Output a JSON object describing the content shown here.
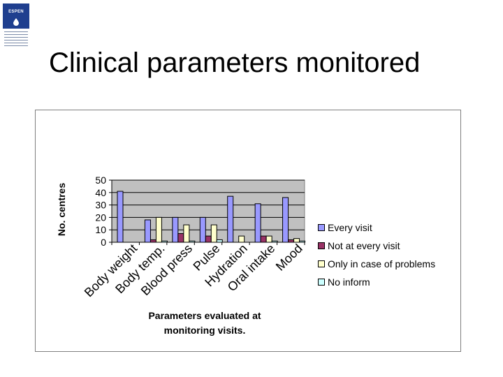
{
  "logo": {
    "text": "ESPEN"
  },
  "slide": {
    "title": "Clinical parameters monitored"
  },
  "colors": {
    "plot_background": "#c0c0c0",
    "every_visit": "#9999ff",
    "not_at_every_visit": "#993366",
    "only_in_case": "#ffffcc",
    "no_inform": "#ccffff"
  },
  "chart_data": {
    "type": "bar",
    "title": "",
    "xlabel": "Parameters evaluated at monitoring visits.",
    "ylabel": "No. centres",
    "ylim": [
      0,
      50
    ],
    "yticks": [
      0,
      10,
      20,
      30,
      40,
      50
    ],
    "grid": true,
    "legend_position": "right",
    "categories": [
      "Body weight",
      "Body temp.",
      "Blood press",
      "Pulse",
      "Hydration",
      "Oral intake",
      "Mood"
    ],
    "series": [
      {
        "name": "Every visit",
        "color": "#9999ff",
        "values": [
          41,
          18,
          20,
          20,
          37,
          31,
          36
        ]
      },
      {
        "name": "Not at every visit",
        "color": "#993366",
        "values": [
          0,
          2,
          7,
          5,
          0,
          5,
          2
        ]
      },
      {
        "name": "Only in case of problems",
        "color": "#ffffcc",
        "values": [
          0,
          20,
          14,
          14,
          5,
          5,
          3
        ]
      },
      {
        "name": "No inform",
        "color": "#ccffff",
        "values": [
          0,
          1,
          1,
          2,
          0,
          1,
          1
        ]
      }
    ]
  }
}
